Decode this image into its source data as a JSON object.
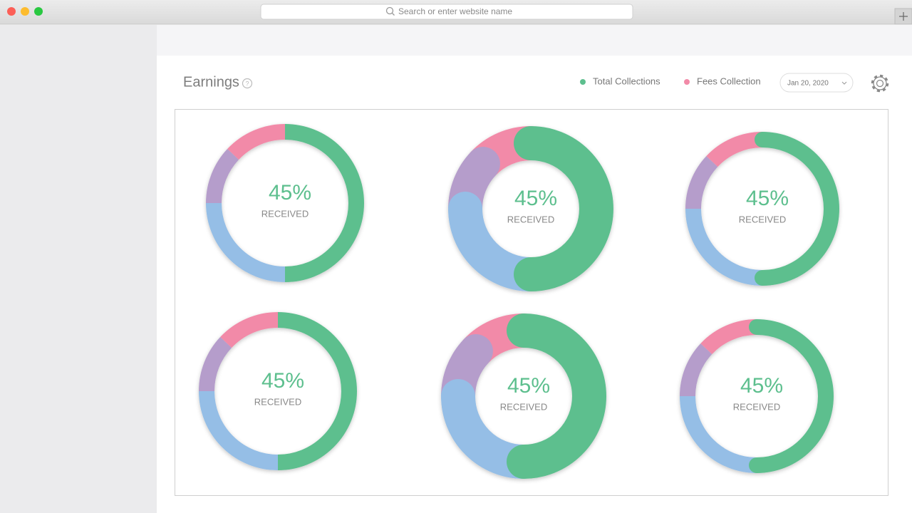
{
  "browser": {
    "address_placeholder": "Search or enter website name"
  },
  "header": {
    "title": "Earnings",
    "help_icon": "?",
    "legend": [
      {
        "name": "Total Collections",
        "color": "#5dbf8e"
      },
      {
        "name": "Fees Collection",
        "color": "#f28aa8"
      }
    ],
    "date": "Jan 20, 2020"
  },
  "charts": [
    {
      "type": "donut",
      "center_label": "45%",
      "caption": "RECEIVED",
      "caps": "flat",
      "segments": [
        {
          "value": 50,
          "color": "#5dbf8e"
        },
        {
          "value": 25,
          "color": "#95bee6"
        },
        {
          "value": 12,
          "color": "#b59dcb"
        },
        {
          "value": 13,
          "color": "#f28aa8"
        }
      ]
    },
    {
      "type": "donut",
      "center_label": "45%",
      "caption": "RECEIVED",
      "caps": "round",
      "segments": [
        {
          "value": 50,
          "color": "#5dbf8e"
        },
        {
          "value": 25,
          "color": "#95bee6"
        },
        {
          "value": 12,
          "color": "#b59dcb"
        },
        {
          "value": 13,
          "color": "#f28aa8"
        }
      ]
    },
    {
      "type": "donut",
      "center_label": "45%",
      "caption": "RECEIVED",
      "caps": "round-lead",
      "segments": [
        {
          "value": 50,
          "color": "#5dbf8e"
        },
        {
          "value": 25,
          "color": "#95bee6"
        },
        {
          "value": 12,
          "color": "#b59dcb"
        },
        {
          "value": 13,
          "color": "#f28aa8"
        }
      ]
    },
    {
      "type": "donut",
      "center_label": "45%",
      "caption": "RECEIVED",
      "caps": "flat",
      "segments": [
        {
          "value": 50,
          "color": "#5dbf8e"
        },
        {
          "value": 25,
          "color": "#95bee6"
        },
        {
          "value": 12,
          "color": "#b59dcb"
        },
        {
          "value": 13,
          "color": "#f28aa8"
        }
      ]
    },
    {
      "type": "donut",
      "center_label": "45%",
      "caption": "RECEIVED",
      "caps": "round",
      "segments": [
        {
          "value": 50,
          "color": "#5dbf8e"
        },
        {
          "value": 25,
          "color": "#95bee6"
        },
        {
          "value": 12,
          "color": "#b59dcb"
        },
        {
          "value": 13,
          "color": "#f28aa8"
        }
      ]
    },
    {
      "type": "donut",
      "center_label": "45%",
      "caption": "RECEIVED",
      "caps": "round-lead",
      "segments": [
        {
          "value": 50,
          "color": "#5dbf8e"
        },
        {
          "value": 25,
          "color": "#95bee6"
        },
        {
          "value": 12,
          "color": "#b59dcb"
        },
        {
          "value": 13,
          "color": "#f28aa8"
        }
      ]
    }
  ]
}
